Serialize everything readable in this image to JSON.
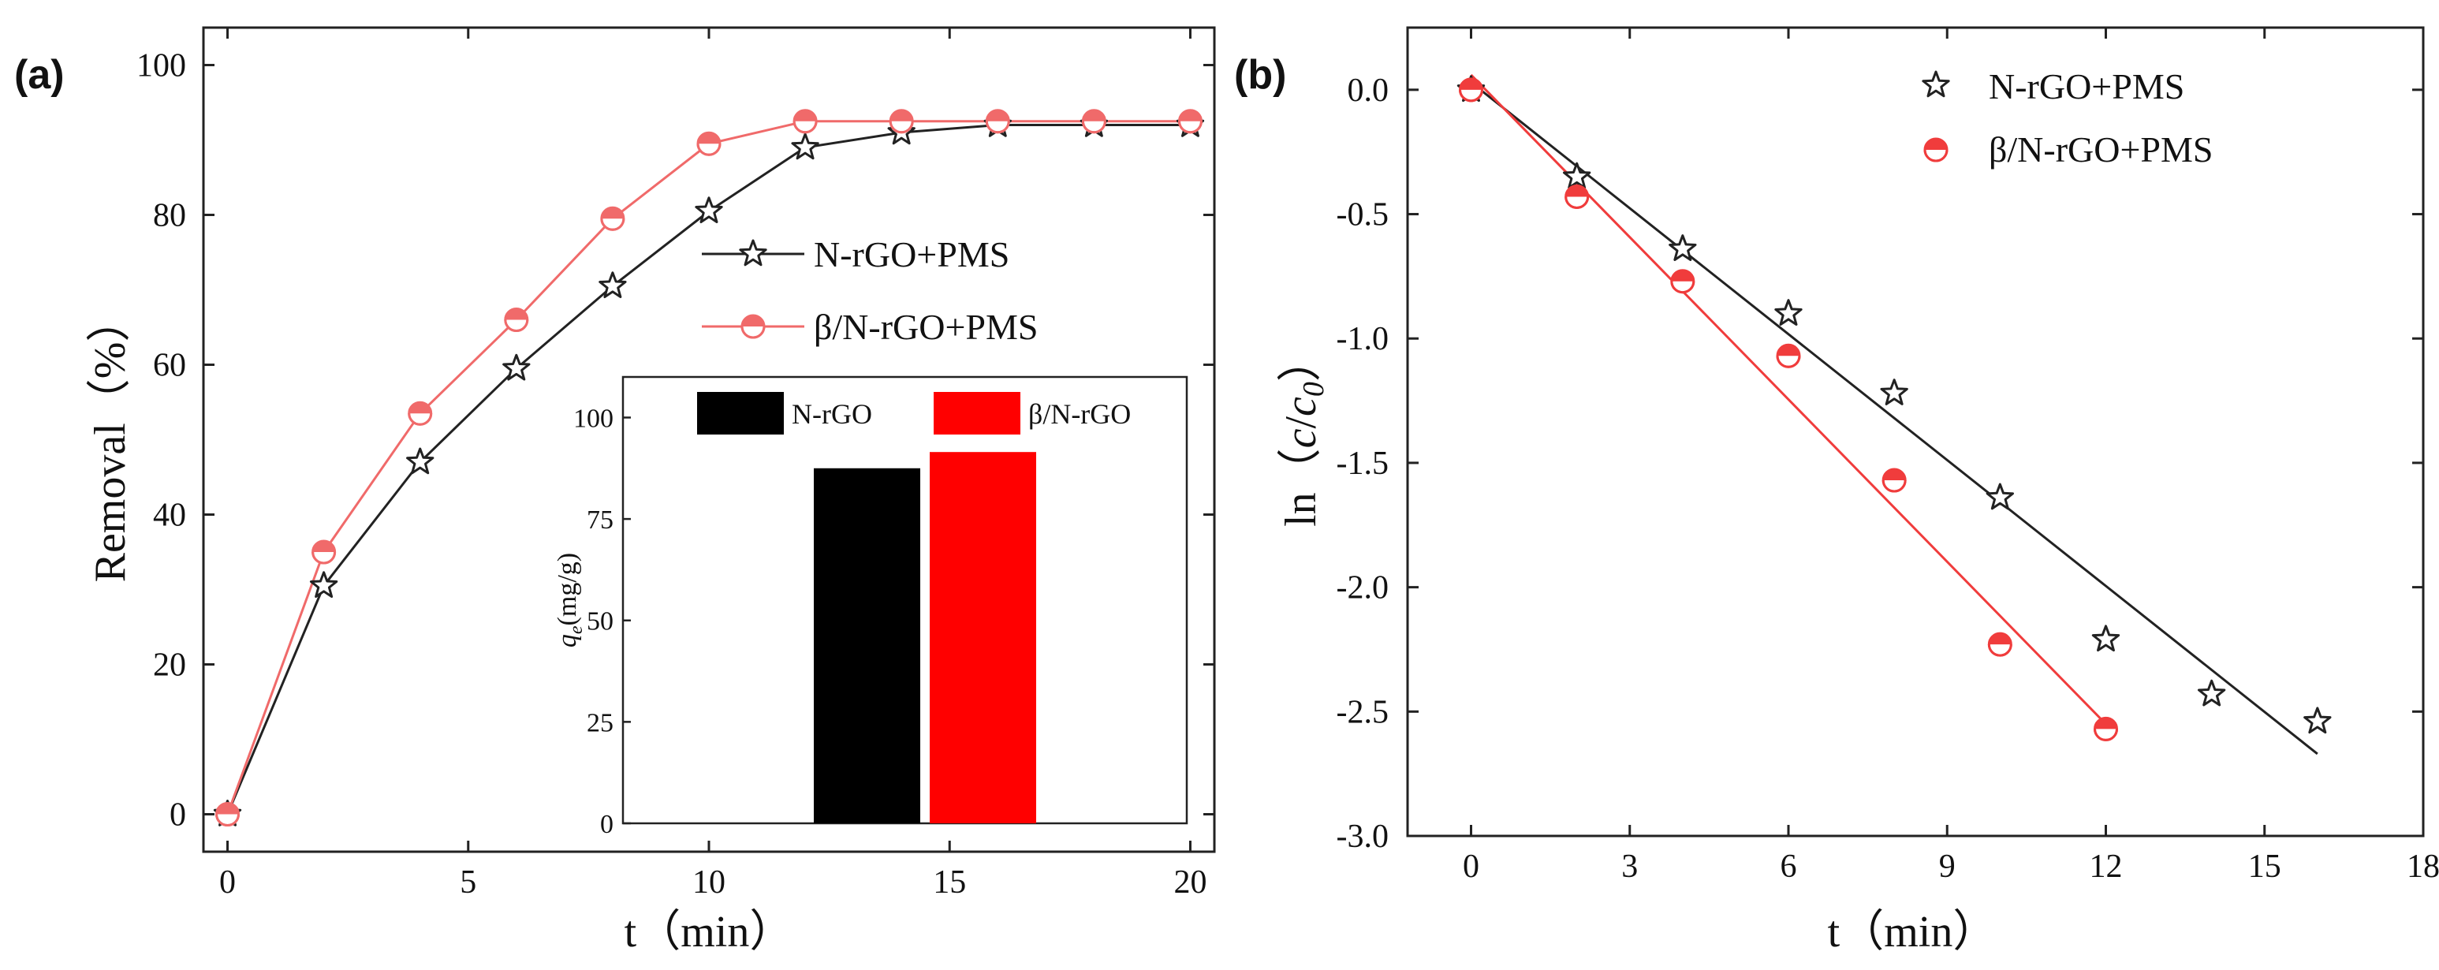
{
  "panels": [
    {
      "label": "(a)"
    },
    {
      "label": "(b)"
    }
  ],
  "chart_data": [
    {
      "id": "a",
      "type": "line",
      "xlabel": "t（min）",
      "ylabel": "Removal（%）",
      "xlim": [
        -0.5,
        20.5
      ],
      "ylim": [
        -5,
        105
      ],
      "xticks": [
        0,
        5,
        10,
        15,
        20
      ],
      "yticks": [
        0,
        20,
        40,
        60,
        80,
        100
      ],
      "grid": false,
      "legend": "center-right",
      "x": [
        0,
        2,
        4,
        6,
        8,
        10,
        12,
        14,
        16,
        18,
        20
      ],
      "series": [
        {
          "name": "N-rGO+PMS",
          "marker": "star",
          "color": "#222222",
          "values": [
            0,
            30.5,
            47,
            59.5,
            70.5,
            80.5,
            89,
            91,
            92,
            92,
            92
          ]
        },
        {
          "name": "β/N-rGO+PMS",
          "marker": "half-circle",
          "color": "#f06a6a",
          "values": [
            0,
            35,
            53.5,
            66,
            79.5,
            89.5,
            92.5,
            92.5,
            92.5,
            92.5,
            92.5
          ]
        }
      ]
    },
    {
      "id": "a-inset",
      "type": "bar",
      "ylabel": "q_e(mg/g)",
      "ylabel_main": "q",
      "ylabel_sub": "e",
      "ylabel_rest": "(mg/g)",
      "ylim": [
        0,
        110
      ],
      "yticks": [
        0,
        25,
        50,
        75,
        100
      ],
      "legend": "top",
      "categories": [
        "N-rGO",
        "β/N-rGO"
      ],
      "values": [
        87.5,
        91.5
      ],
      "colors": [
        "#000000",
        "#ff0000"
      ]
    },
    {
      "id": "b",
      "type": "scatter",
      "xlabel": "t（min）",
      "ylabel": "ln（c/c0）",
      "ylabel_prefix": "ln（",
      "ylabel_c": "c",
      "ylabel_slash": "/",
      "ylabel_c0": "c",
      "ylabel_sub": "0",
      "ylabel_suffix": "）",
      "xlim": [
        -1.2,
        18
      ],
      "ylim": [
        -3.0,
        0.25
      ],
      "xticks": [
        0,
        3,
        6,
        9,
        12,
        15,
        18
      ],
      "yticks": [
        "0.0",
        "-0.5",
        "-1.0",
        "-1.5",
        "-2.0",
        "-2.5",
        "-3.0"
      ],
      "grid": false,
      "legend": "top-right",
      "series": [
        {
          "name": "N-rGO+PMS",
          "marker": "star",
          "color": "#222222",
          "x": [
            0,
            2,
            4,
            6,
            8,
            10,
            12,
            14,
            16
          ],
          "y": [
            0,
            -0.35,
            -0.64,
            -0.9,
            -1.22,
            -1.64,
            -2.21,
            -2.43,
            -2.54
          ],
          "fit": {
            "x": [
              0,
              16
            ],
            "y": [
              0.03,
              -2.67
            ]
          }
        },
        {
          "name": "β/N-rGO+PMS",
          "marker": "half-circle",
          "color": "#f03c3c",
          "x": [
            0,
            2,
            4,
            6,
            8,
            10,
            12
          ],
          "y": [
            0,
            -0.43,
            -0.77,
            -1.07,
            -1.57,
            -2.23,
            -2.57
          ],
          "fit": {
            "x": [
              0,
              12
            ],
            "y": [
              0.06,
              -2.55
            ]
          }
        }
      ]
    }
  ]
}
